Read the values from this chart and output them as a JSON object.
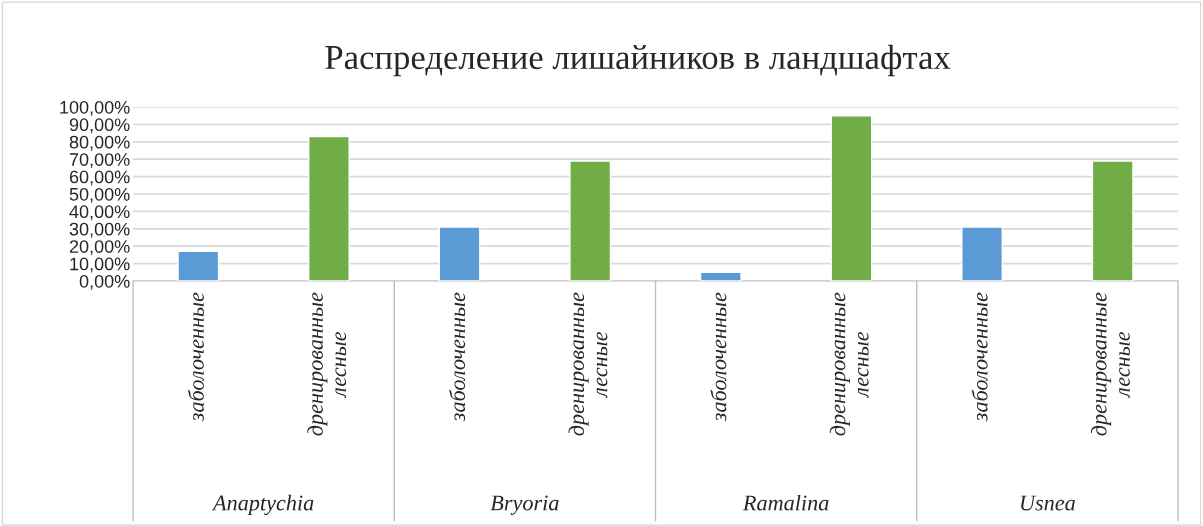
{
  "chart_data": {
    "type": "bar",
    "title": "Распределение лишайников в ландшафтах",
    "categories": [
      "заболоченные",
      "дренированные\nлесные",
      "заболоченные",
      "дренированные\nлесные",
      "заболоченные",
      "дренированные\nлесные",
      "заболоченные",
      "дренированные\nлесные"
    ],
    "values": [
      17,
      83,
      31,
      69,
      5,
      95,
      31,
      69
    ],
    "colors": [
      "#5b9bd5",
      "#70ad47",
      "#5b9bd5",
      "#70ad47",
      "#5b9bd5",
      "#70ad47",
      "#5b9bd5",
      "#70ad47"
    ],
    "annotations": [
      "Anaptychia",
      "Bryoria",
      "Ramalina",
      "Usnea"
    ],
    "ylim": [
      0,
      100
    ],
    "yticks": [
      {
        "value": 0,
        "label": "0,00%"
      },
      {
        "value": 10,
        "label": "10,00%"
      },
      {
        "value": 20,
        "label": "20,00%"
      },
      {
        "value": 30,
        "label": "30,00%"
      },
      {
        "value": 40,
        "label": "40,00%"
      },
      {
        "value": 50,
        "label": "50,00%"
      },
      {
        "value": 60,
        "label": "60,00%"
      },
      {
        "value": 70,
        "label": "70,00%"
      },
      {
        "value": 80,
        "label": "80,00%"
      },
      {
        "value": 90,
        "label": "90,00%"
      },
      {
        "value": 100,
        "label": "100,00%"
      }
    ],
    "grid": "y",
    "legend": false
  }
}
